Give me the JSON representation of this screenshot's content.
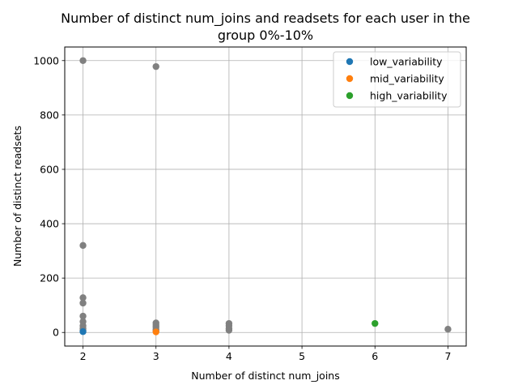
{
  "chart_data": {
    "type": "scatter",
    "title_line1": "Number of distinct num_joins and readsets for each user in the",
    "title_line2": "group 0%-10%",
    "xlabel": "Number of distinct num_joins",
    "ylabel": "Number of distinct readsets",
    "xlim": [
      1.75,
      7.25
    ],
    "ylim": [
      -50,
      1050
    ],
    "xticks": [
      2,
      3,
      4,
      5,
      6,
      7
    ],
    "yticks": [
      0,
      200,
      400,
      600,
      800,
      1000
    ],
    "grid": true,
    "legend_placement": "top-right",
    "background_points": {
      "color": "#808080",
      "points": [
        [
          2,
          1000
        ],
        [
          2,
          320
        ],
        [
          2,
          128
        ],
        [
          2,
          108
        ],
        [
          2,
          60
        ],
        [
          2,
          40
        ],
        [
          2,
          25
        ],
        [
          2,
          15
        ],
        [
          2,
          8
        ],
        [
          3,
          978
        ],
        [
          3,
          35
        ],
        [
          3,
          28
        ],
        [
          3,
          20
        ],
        [
          3,
          12
        ],
        [
          3,
          6
        ],
        [
          4,
          33
        ],
        [
          4,
          25
        ],
        [
          4,
          15
        ],
        [
          4,
          8
        ],
        [
          7,
          12
        ]
      ]
    },
    "series": [
      {
        "name": "low_variability",
        "color": "#1f77b4",
        "points": [
          [
            2,
            3
          ]
        ]
      },
      {
        "name": "mid_variability",
        "color": "#ff7f0e",
        "points": [
          [
            3,
            2
          ]
        ]
      },
      {
        "name": "high_variability",
        "color": "#2ca02c",
        "points": [
          [
            6,
            33
          ]
        ]
      }
    ]
  }
}
